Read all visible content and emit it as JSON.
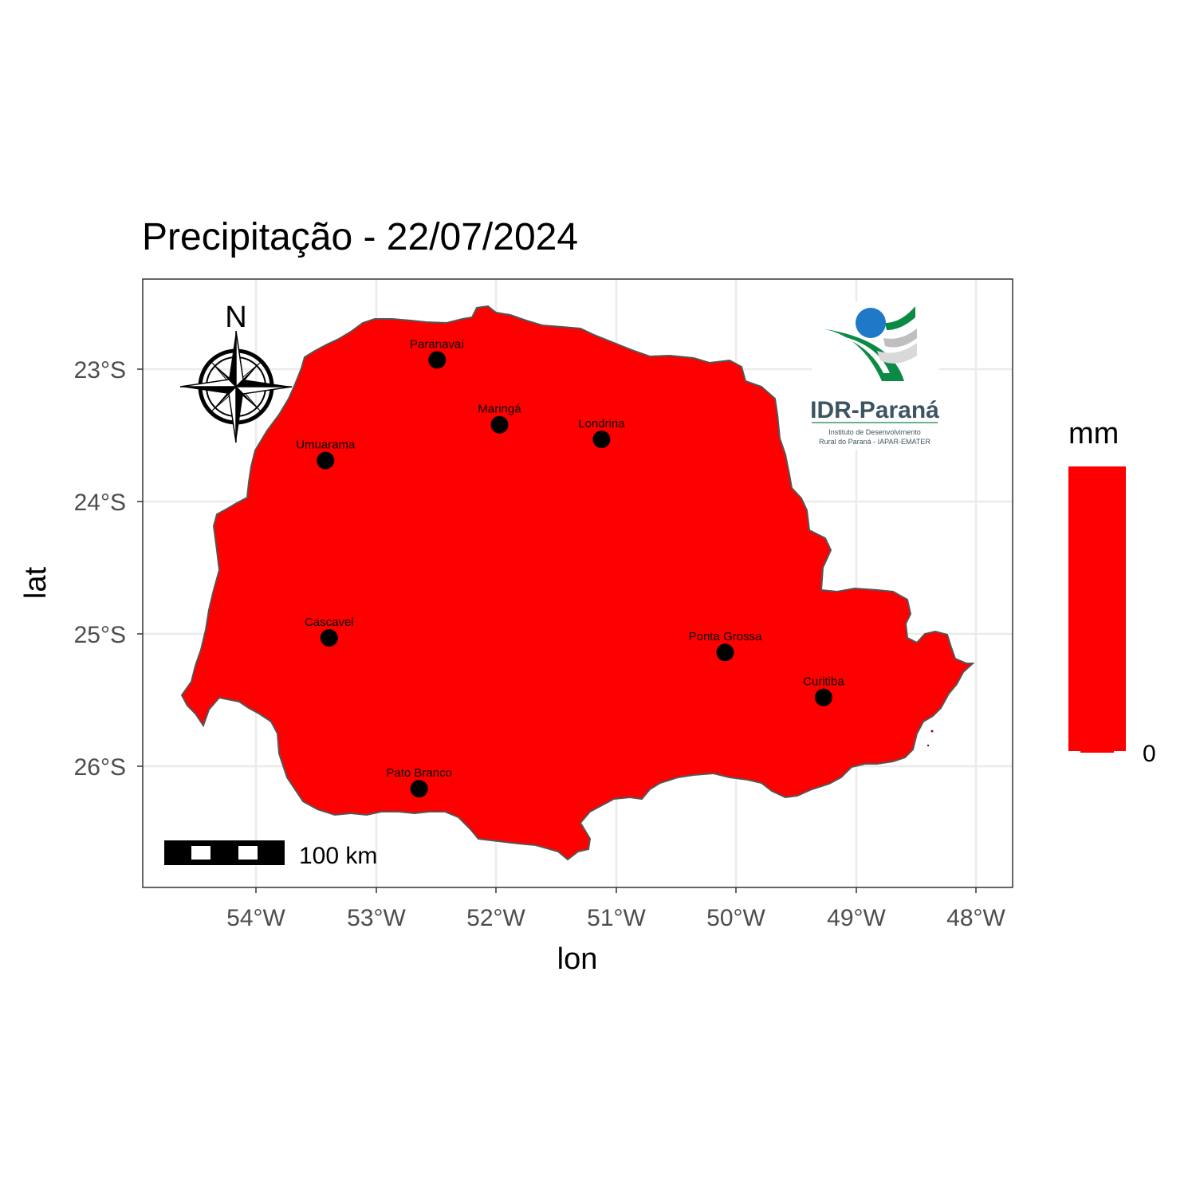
{
  "title": "Precipitação -  22/07/2024",
  "axes": {
    "x_title": "lon",
    "y_title": "lat",
    "x_ticks": [
      "54°W",
      "53°W",
      "52°W",
      "51°W",
      "50°W",
      "49°W",
      "48°W"
    ],
    "y_ticks": [
      "23°S",
      "24°S",
      "25°S",
      "26°S"
    ]
  },
  "legend": {
    "title": "mm",
    "tick": "0",
    "fill_color": "#ff0000"
  },
  "north_arrow_label": "N",
  "scale_bar_label": "100 km",
  "logo": {
    "name": "IDR-Paraná",
    "subtitle_line1": "Instituto de Desenvolvimento",
    "subtitle_line2": "Rural do Paraná - IAPAR-EMATER"
  },
  "cities": [
    {
      "name": "Paranavaí",
      "lon": -52.49,
      "lat": -22.93
    },
    {
      "name": "Maringá",
      "lon": -51.97,
      "lat": -23.42
    },
    {
      "name": "Londrina",
      "lon": -51.12,
      "lat": -23.53
    },
    {
      "name": "Umuarama",
      "lon": -53.42,
      "lat": -23.69
    },
    {
      "name": "Cascavel",
      "lon": -53.39,
      "lat": -25.03
    },
    {
      "name": "Ponta Grossa",
      "lon": -50.09,
      "lat": -25.14
    },
    {
      "name": "Curitiba",
      "lon": -49.27,
      "lat": -25.48
    },
    {
      "name": "Pato Branco",
      "lon": -52.64,
      "lat": -26.17
    }
  ],
  "colors": {
    "state_fill": "#ff0000",
    "state_border": "#555555",
    "grid": "#ebebeb",
    "panel_border": "#333333"
  }
}
